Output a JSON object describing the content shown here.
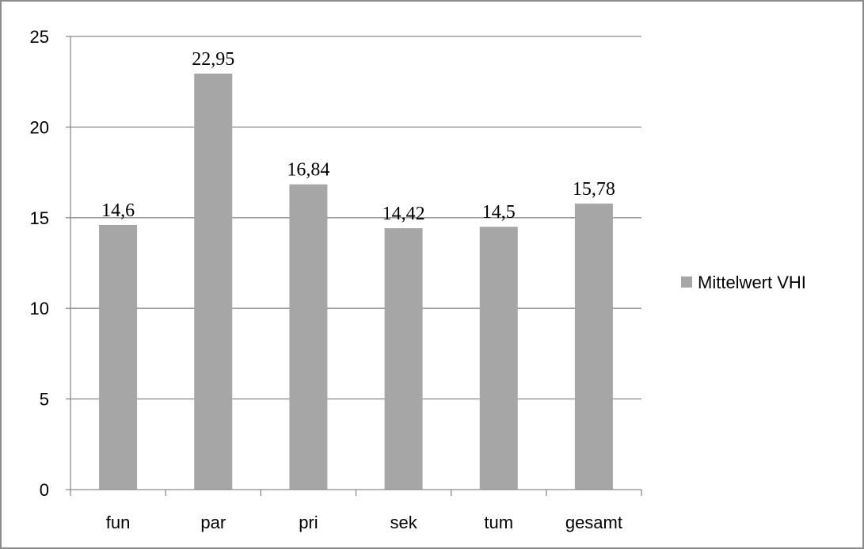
{
  "chart_data": {
    "type": "bar",
    "categories": [
      "fun",
      "par",
      "pri",
      "sek",
      "tum",
      "gesamt"
    ],
    "series": [
      {
        "name": "Mittelwert VHI",
        "values": [
          14.6,
          22.95,
          16.84,
          14.42,
          14.5,
          15.78
        ],
        "labels": [
          "14,6",
          "22,95",
          "16,84",
          "14,42",
          "14,5",
          "15,78"
        ],
        "color": "#a6a6a6"
      }
    ],
    "title": "",
    "xlabel": "",
    "ylabel": "",
    "ylim": [
      0,
      25
    ],
    "yticks": [
      0,
      5,
      10,
      15,
      20,
      25
    ],
    "grid": "horizontal",
    "legend": "right",
    "colors": {
      "bar": "#a6a6a6",
      "gridline": "#8c8c8c",
      "axis": "#8c8c8c",
      "frame": "#8c8c8c"
    }
  }
}
